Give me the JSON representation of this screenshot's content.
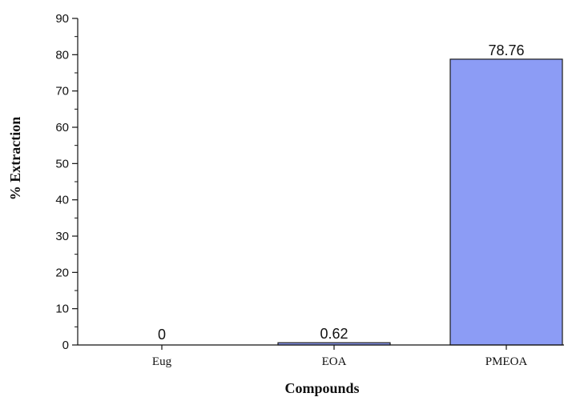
{
  "chart_data": {
    "type": "bar",
    "categories": [
      "Eug",
      "EOA",
      "PMEOA"
    ],
    "values": [
      0,
      0.62,
      78.76
    ],
    "data_labels": [
      "0",
      "0.62",
      "78.76"
    ],
    "title": "",
    "xlabel": "Compounds",
    "ylabel": "% Extraction",
    "ylim": [
      0,
      90
    ],
    "yticks": [
      0,
      10,
      20,
      30,
      40,
      50,
      60,
      70,
      80,
      90
    ],
    "grid": false,
    "legend": "none",
    "bar_color": "#8c9cf5",
    "bar_edge_color": "#1a1a1a"
  }
}
